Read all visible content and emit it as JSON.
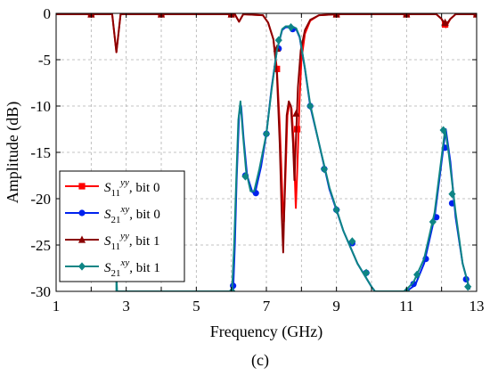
{
  "chart_data": {
    "type": "line",
    "caption": "(c)",
    "xlabel": "Frequency (GHz)",
    "ylabel": "Amplitude (dB)",
    "xlim": [
      1,
      13
    ],
    "ylim": [
      -30,
      0
    ],
    "xticks": [
      1,
      3,
      5,
      7,
      9,
      11,
      13
    ],
    "yticks": [
      0,
      -5,
      -10,
      -15,
      -20,
      -25,
      -30
    ],
    "grid": true,
    "legend_position": "left-bottom",
    "series": [
      {
        "name_main": "S",
        "name_sub": "11",
        "name_sup": "yy",
        "name_suffix": ", bit 0",
        "color": "#ff0000",
        "marker": "square",
        "points": [
          [
            1.0,
            -0.1
          ],
          [
            2.6,
            -0.1
          ],
          [
            2.72,
            -4.2
          ],
          [
            2.84,
            -0.1
          ],
          [
            6.1,
            -0.1
          ],
          [
            6.22,
            -0.9
          ],
          [
            6.34,
            -0.1
          ],
          [
            6.9,
            -0.2
          ],
          [
            7.05,
            -1.0
          ],
          [
            7.2,
            -2.8
          ],
          [
            7.3,
            -6.0
          ],
          [
            7.38,
            -12.0
          ],
          [
            7.46,
            -20.0
          ],
          [
            7.5,
            -22.5
          ],
          [
            7.55,
            -17.0
          ],
          [
            7.6,
            -11.0
          ],
          [
            7.66,
            -9.7
          ],
          [
            7.72,
            -10.3
          ],
          [
            7.78,
            -14.0
          ],
          [
            7.84,
            -21.0
          ],
          [
            7.88,
            -17.0
          ],
          [
            7.95,
            -9.0
          ],
          [
            8.0,
            -5.0
          ],
          [
            8.1,
            -2.2
          ],
          [
            8.25,
            -0.8
          ],
          [
            8.5,
            -0.2
          ],
          [
            9.0,
            -0.1
          ],
          [
            11.85,
            -0.1
          ],
          [
            12.0,
            -0.6
          ],
          [
            12.12,
            -1.5
          ],
          [
            12.25,
            -0.6
          ],
          [
            12.4,
            -0.1
          ],
          [
            13.0,
            -0.1
          ]
        ],
        "markers": [
          [
            2.0,
            -0.1
          ],
          [
            4.0,
            -0.1
          ],
          [
            6.0,
            -0.1
          ],
          [
            7.3,
            -6.0
          ],
          [
            7.88,
            -12.5
          ],
          [
            9.0,
            -0.1
          ],
          [
            11.0,
            -0.1
          ],
          [
            12.1,
            -1.2
          ],
          [
            13.0,
            -0.1
          ]
        ]
      },
      {
        "name_main": "S",
        "name_sub": "21",
        "name_sup": "xy",
        "name_suffix": ", bit 0",
        "color": "#0022ee",
        "marker": "circle",
        "points": [
          [
            6.05,
            -30.0
          ],
          [
            6.1,
            -25.0
          ],
          [
            6.15,
            -18.0
          ],
          [
            6.22,
            -11.0
          ],
          [
            6.28,
            -10.0
          ],
          [
            6.35,
            -13.5
          ],
          [
            6.45,
            -17.5
          ],
          [
            6.6,
            -19.3
          ],
          [
            6.7,
            -19.0
          ],
          [
            6.85,
            -16.5
          ],
          [
            7.0,
            -13.0
          ],
          [
            7.15,
            -8.0
          ],
          [
            7.3,
            -4.0
          ],
          [
            7.45,
            -1.8
          ],
          [
            7.55,
            -1.5
          ],
          [
            7.7,
            -1.5
          ],
          [
            7.85,
            -1.7
          ],
          [
            7.95,
            -2.6
          ],
          [
            8.1,
            -6.0
          ],
          [
            8.25,
            -10.0
          ],
          [
            8.5,
            -14.0
          ],
          [
            8.8,
            -19.0
          ],
          [
            9.2,
            -23.5
          ],
          [
            9.6,
            -27.0
          ],
          [
            10.0,
            -29.5
          ],
          [
            10.1,
            -30.0
          ],
          [
            11.0,
            -30.0
          ],
          [
            11.25,
            -29.3
          ],
          [
            11.5,
            -27.0
          ],
          [
            11.8,
            -22.0
          ],
          [
            12.0,
            -16.0
          ],
          [
            12.12,
            -12.5
          ],
          [
            12.25,
            -16.0
          ],
          [
            12.4,
            -22.0
          ],
          [
            12.6,
            -27.0
          ],
          [
            12.8,
            -29.8
          ]
        ],
        "markers": [
          [
            6.05,
            -29.4
          ],
          [
            6.4,
            -17.5
          ],
          [
            6.7,
            -19.4
          ],
          [
            7.0,
            -13.0
          ],
          [
            7.35,
            -3.8
          ],
          [
            7.75,
            -1.7
          ],
          [
            8.25,
            -10.0
          ],
          [
            8.65,
            -16.8
          ],
          [
            9.0,
            -21.2
          ],
          [
            9.45,
            -24.8
          ],
          [
            9.85,
            -28.0
          ],
          [
            11.2,
            -29.2
          ],
          [
            11.55,
            -26.5
          ],
          [
            11.85,
            -22.0
          ],
          [
            12.1,
            -14.5
          ],
          [
            12.3,
            -20.5
          ],
          [
            12.7,
            -28.7
          ]
        ]
      },
      {
        "name_main": "S",
        "name_sub": "11",
        "name_sup": "yy",
        "name_suffix": ", bit 1",
        "color": "#8b0000",
        "marker": "triangle",
        "points": [
          [
            1.0,
            -0.1
          ],
          [
            2.6,
            -0.1
          ],
          [
            2.72,
            -4.2
          ],
          [
            2.84,
            -0.1
          ],
          [
            6.1,
            -0.1
          ],
          [
            6.22,
            -0.9
          ],
          [
            6.34,
            -0.1
          ],
          [
            6.9,
            -0.2
          ],
          [
            7.05,
            -1.0
          ],
          [
            7.2,
            -2.8
          ],
          [
            7.3,
            -6.5
          ],
          [
            7.38,
            -14.0
          ],
          [
            7.44,
            -22.0
          ],
          [
            7.48,
            -25.8
          ],
          [
            7.53,
            -18.0
          ],
          [
            7.58,
            -11.0
          ],
          [
            7.64,
            -9.5
          ],
          [
            7.7,
            -10.0
          ],
          [
            7.76,
            -14.0
          ],
          [
            7.8,
            -18.0
          ],
          [
            7.84,
            -14.0
          ],
          [
            7.9,
            -8.0
          ],
          [
            7.98,
            -4.0
          ],
          [
            8.1,
            -1.8
          ],
          [
            8.25,
            -0.7
          ],
          [
            8.5,
            -0.2
          ],
          [
            9.0,
            -0.1
          ],
          [
            11.85,
            -0.1
          ],
          [
            12.0,
            -0.6
          ],
          [
            12.12,
            -1.3
          ],
          [
            12.25,
            -0.6
          ],
          [
            12.4,
            -0.1
          ],
          [
            13.0,
            -0.1
          ]
        ],
        "markers": [
          [
            2.0,
            -0.1
          ],
          [
            4.0,
            -0.1
          ],
          [
            6.0,
            -0.1
          ],
          [
            7.3,
            -3.8
          ],
          [
            7.85,
            -10.8
          ],
          [
            9.0,
            -0.1
          ],
          [
            11.0,
            -0.1
          ],
          [
            12.1,
            -1.0
          ],
          [
            13.0,
            -0.1
          ]
        ]
      },
      {
        "name_main": "S",
        "name_sub": "21",
        "name_sup": "xy",
        "name_suffix": ", bit 1",
        "color": "#0e8585",
        "marker": "diamond",
        "points": [
          [
            2.72,
            -30.0
          ],
          [
            2.72,
            -28.3
          ],
          [
            2.74,
            -30.0
          ],
          [
            6.02,
            -30.0
          ],
          [
            6.08,
            -25.0
          ],
          [
            6.14,
            -18.0
          ],
          [
            6.2,
            -11.5
          ],
          [
            6.26,
            -9.5
          ],
          [
            6.33,
            -13.0
          ],
          [
            6.42,
            -17.0
          ],
          [
            6.55,
            -19.2
          ],
          [
            6.65,
            -19.2
          ],
          [
            6.8,
            -16.8
          ],
          [
            7.0,
            -13.0
          ],
          [
            7.15,
            -8.2
          ],
          [
            7.3,
            -4.0
          ],
          [
            7.45,
            -1.7
          ],
          [
            7.55,
            -1.4
          ],
          [
            7.7,
            -1.4
          ],
          [
            7.85,
            -1.6
          ],
          [
            7.95,
            -2.5
          ],
          [
            8.1,
            -5.9
          ],
          [
            8.25,
            -9.8
          ],
          [
            8.5,
            -14.0
          ],
          [
            8.8,
            -18.8
          ],
          [
            9.2,
            -23.5
          ],
          [
            9.6,
            -27.0
          ],
          [
            10.0,
            -29.5
          ],
          [
            10.1,
            -30.0
          ],
          [
            10.95,
            -30.0
          ],
          [
            11.2,
            -29.0
          ],
          [
            11.5,
            -26.5
          ],
          [
            11.8,
            -21.5
          ],
          [
            12.0,
            -15.5
          ],
          [
            12.1,
            -12.5
          ],
          [
            12.2,
            -15.0
          ],
          [
            12.4,
            -21.5
          ],
          [
            12.6,
            -27.0
          ],
          [
            12.8,
            -29.8
          ]
        ],
        "markers": [
          [
            6.02,
            -30.0
          ],
          [
            6.4,
            -17.6
          ],
          [
            7.0,
            -13.0
          ],
          [
            7.35,
            -2.9
          ],
          [
            7.7,
            -1.5
          ],
          [
            8.25,
            -10.0
          ],
          [
            8.65,
            -16.8
          ],
          [
            9.0,
            -21.2
          ],
          [
            9.45,
            -24.6
          ],
          [
            9.85,
            -28.0
          ],
          [
            11.0,
            -30.0
          ],
          [
            11.3,
            -28.2
          ],
          [
            11.75,
            -22.5
          ],
          [
            12.05,
            -12.6
          ],
          [
            12.3,
            -19.5
          ],
          [
            12.75,
            -29.5
          ]
        ]
      }
    ]
  }
}
